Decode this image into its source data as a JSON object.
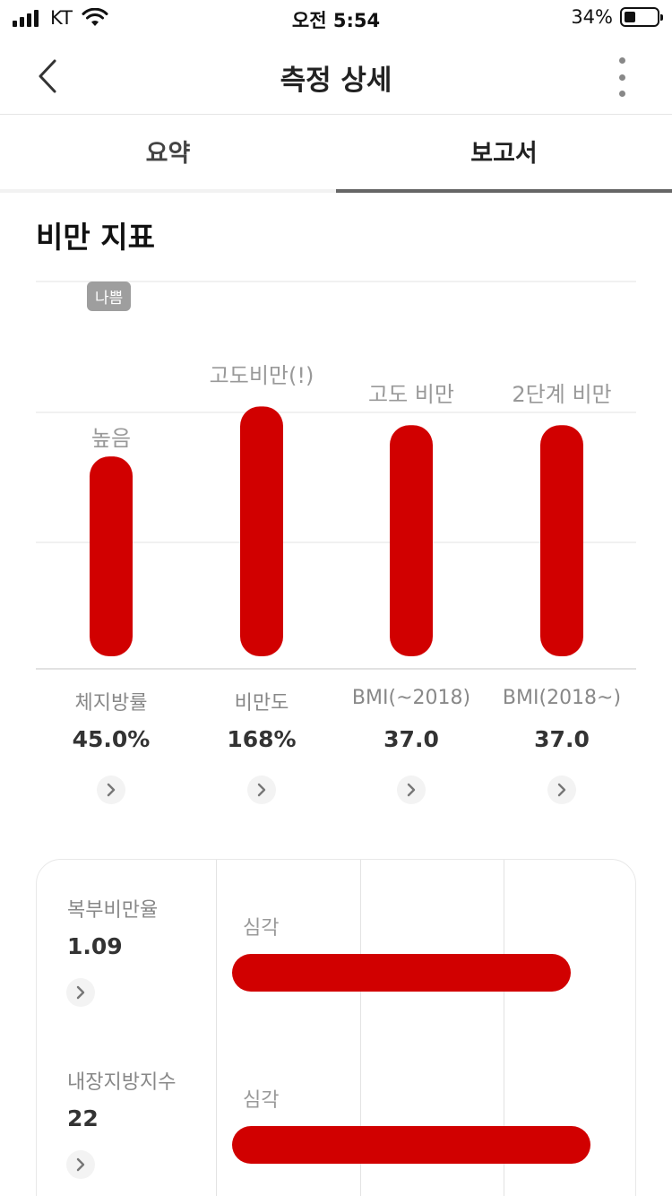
{
  "status_bar": {
    "carrier": "KT",
    "time": "오전 5:54",
    "battery_percent": "34%",
    "battery_level": 0.34
  },
  "nav": {
    "title": "측정 상세",
    "back_icon": "chevron-left-icon",
    "more_icon": "more-vertical-icon"
  },
  "tabs": [
    {
      "label": "요약",
      "active": false
    },
    {
      "label": "보고서",
      "active": true
    }
  ],
  "section": {
    "title": "비만 지표"
  },
  "bad_badge": "나쁨",
  "colors": {
    "bar": "#d10000",
    "grid": "#e3e3e3",
    "badge": "#9e9e9e"
  },
  "chart_data": {
    "type": "bar",
    "title": "비만 지표",
    "bar_color": "#d10000",
    "level_scale": [
      1,
      4
    ],
    "categories": [
      "체지방률",
      "비만도",
      "BMI(~2018)",
      "BMI(2018~)"
    ],
    "values_display": [
      "45.0%",
      "168%",
      "37.0",
      "37.0"
    ],
    "level_labels": [
      "높음",
      "고도비만(!)",
      "고도 비만",
      "2단계 비만"
    ],
    "levels": [
      2.6,
      3.0,
      2.85,
      2.85
    ]
  },
  "card": {
    "items": [
      {
        "name": "복부비만율",
        "value": "1.09",
        "level": "심각",
        "bar_fill": 0.86
      },
      {
        "name": "내장지방지수",
        "value": "22",
        "level": "심각",
        "bar_fill": 0.91
      }
    ]
  }
}
